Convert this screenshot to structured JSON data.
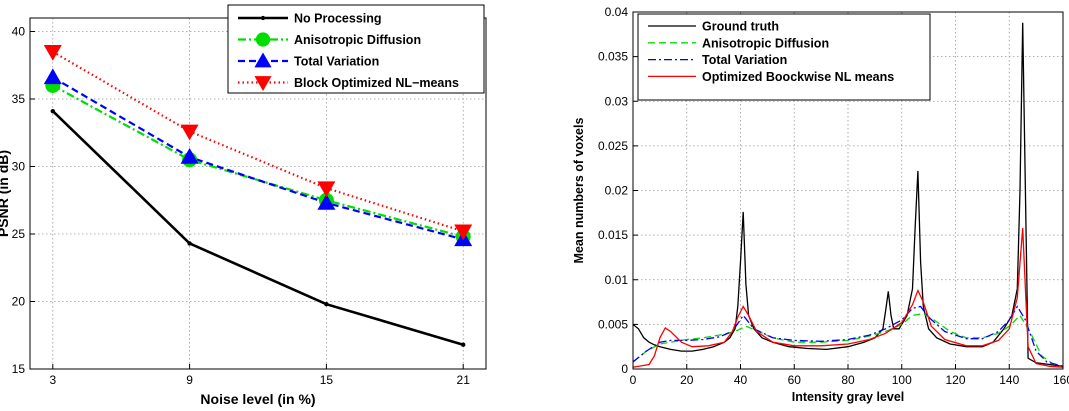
{
  "chart_data": [
    {
      "type": "line",
      "xlabel": "Noise level (in %)",
      "ylabel": "PSNR (in dB)",
      "xlim": [
        2,
        22
      ],
      "ylim": [
        15,
        41
      ],
      "xticks": [
        3,
        9,
        15,
        21
      ],
      "yticks": [
        15,
        20,
        25,
        30,
        35,
        40
      ],
      "grid": true,
      "legend_position": "top-right",
      "x": [
        3,
        9,
        15,
        21
      ],
      "series": [
        {
          "name": "No Processing",
          "values": [
            34.1,
            24.3,
            19.8,
            16.8
          ],
          "color": "#000000",
          "style": "solid",
          "marker": "dot"
        },
        {
          "name": "Anisotropic Diffusion",
          "values": [
            36.0,
            30.5,
            27.5,
            24.8
          ],
          "color": "#00dd00",
          "style": "dashdot",
          "marker": "circle"
        },
        {
          "name": "Total Variation",
          "values": [
            36.6,
            30.7,
            27.3,
            24.6
          ],
          "color": "#0000ff",
          "style": "dashed",
          "marker": "triangle-up"
        },
        {
          "name": "Block Optimized NL−means",
          "values": [
            38.5,
            32.6,
            28.4,
            25.2
          ],
          "color": "#ff0000",
          "style": "dotted",
          "marker": "triangle-down"
        }
      ]
    },
    {
      "type": "line",
      "xlabel": "Intensity gray level",
      "ylabel": "Mean numbers of voxels",
      "xlim": [
        0,
        160
      ],
      "ylim": [
        0,
        0.04
      ],
      "xticks": [
        0,
        20,
        40,
        60,
        80,
        100,
        120,
        140,
        160
      ],
      "yticks": [
        0,
        0.005,
        0.01,
        0.015,
        0.02,
        0.025,
        0.03,
        0.035,
        0.04
      ],
      "ytick_labels": [
        "0",
        "0.005",
        "0.01",
        "0.015",
        "0.02",
        "0.025",
        "0.03",
        "0.035",
        "0.04"
      ],
      "grid": true,
      "legend_position": "top-left",
      "series": [
        {
          "name": "Ground truth",
          "color": "#000000",
          "style": "solid",
          "points": [
            [
              0,
              0.005
            ],
            [
              2,
              0.0045
            ],
            [
              4,
              0.0035
            ],
            [
              6,
              0.003
            ],
            [
              8,
              0.0027
            ],
            [
              10,
              0.0025
            ],
            [
              14,
              0.0022
            ],
            [
              18,
              0.002
            ],
            [
              22,
              0.002
            ],
            [
              26,
              0.0022
            ],
            [
              30,
              0.0025
            ],
            [
              34,
              0.003
            ],
            [
              36,
              0.0035
            ],
            [
              38,
              0.0045
            ],
            [
              39,
              0.007
            ],
            [
              40,
              0.012
            ],
            [
              41,
              0.0176
            ],
            [
              42,
              0.0095
            ],
            [
              43,
              0.006
            ],
            [
              45,
              0.0045
            ],
            [
              48,
              0.0035
            ],
            [
              52,
              0.003
            ],
            [
              58,
              0.0025
            ],
            [
              65,
              0.0023
            ],
            [
              72,
              0.0022
            ],
            [
              80,
              0.0025
            ],
            [
              86,
              0.003
            ],
            [
              90,
              0.0035
            ],
            [
              93,
              0.0045
            ],
            [
              94,
              0.0065
            ],
            [
              95,
              0.0087
            ],
            [
              96,
              0.006
            ],
            [
              97,
              0.0045
            ],
            [
              99,
              0.0045
            ],
            [
              102,
              0.006
            ],
            [
              104,
              0.009
            ],
            [
              105,
              0.016
            ],
            [
              106,
              0.0222
            ],
            [
              107,
              0.012
            ],
            [
              108,
              0.007
            ],
            [
              110,
              0.0045
            ],
            [
              113,
              0.0035
            ],
            [
              118,
              0.0028
            ],
            [
              124,
              0.0025
            ],
            [
              130,
              0.0025
            ],
            [
              134,
              0.003
            ],
            [
              138,
              0.0045
            ],
            [
              141,
              0.006
            ],
            [
              143,
              0.009
            ],
            [
              144,
              0.02
            ],
            [
              145,
              0.0388
            ],
            [
              146,
              0.02
            ],
            [
              147,
              0.0012
            ],
            [
              150,
              0.0007
            ],
            [
              155,
              0.0005
            ],
            [
              160,
              0.0003
            ]
          ]
        },
        {
          "name": "Anisotropic Diffusion",
          "color": "#00dd00",
          "style": "dashed",
          "points": [
            [
              0,
              0.0008
            ],
            [
              5,
              0.002
            ],
            [
              10,
              0.0028
            ],
            [
              14,
              0.003
            ],
            [
              20,
              0.0033
            ],
            [
              26,
              0.0035
            ],
            [
              32,
              0.0038
            ],
            [
              38,
              0.0042
            ],
            [
              42,
              0.0048
            ],
            [
              46,
              0.0043
            ],
            [
              52,
              0.0035
            ],
            [
              60,
              0.003
            ],
            [
              70,
              0.003
            ],
            [
              80,
              0.0032
            ],
            [
              88,
              0.0037
            ],
            [
              94,
              0.0042
            ],
            [
              100,
              0.005
            ],
            [
              104,
              0.006
            ],
            [
              108,
              0.0062
            ],
            [
              112,
              0.0055
            ],
            [
              118,
              0.0042
            ],
            [
              124,
              0.0035
            ],
            [
              130,
              0.0035
            ],
            [
              136,
              0.004
            ],
            [
              140,
              0.0048
            ],
            [
              144,
              0.006
            ],
            [
              148,
              0.004
            ],
            [
              152,
              0.0015
            ],
            [
              156,
              0.0006
            ],
            [
              160,
              0.0002
            ]
          ]
        },
        {
          "name": "Total Variation",
          "color": "#0000ff",
          "style": "dashdot",
          "points": [
            [
              0,
              0.0008
            ],
            [
              5,
              0.002
            ],
            [
              10,
              0.003
            ],
            [
              14,
              0.0032
            ],
            [
              20,
              0.0032
            ],
            [
              26,
              0.0033
            ],
            [
              32,
              0.0036
            ],
            [
              37,
              0.0042
            ],
            [
              41,
              0.006
            ],
            [
              45,
              0.0045
            ],
            [
              52,
              0.0035
            ],
            [
              60,
              0.0032
            ],
            [
              70,
              0.0031
            ],
            [
              80,
              0.0033
            ],
            [
              88,
              0.0038
            ],
            [
              94,
              0.0045
            ],
            [
              100,
              0.0055
            ],
            [
              104,
              0.0068
            ],
            [
              107,
              0.007
            ],
            [
              110,
              0.0058
            ],
            [
              116,
              0.0042
            ],
            [
              124,
              0.0034
            ],
            [
              130,
              0.0034
            ],
            [
              136,
              0.0042
            ],
            [
              140,
              0.0055
            ],
            [
              143,
              0.007
            ],
            [
              146,
              0.0055
            ],
            [
              150,
              0.002
            ],
            [
              154,
              0.0008
            ],
            [
              160,
              0.0003
            ]
          ]
        },
        {
          "name": "Optimized Boockwise NL means",
          "color": "#ff0000",
          "style": "solid",
          "points": [
            [
              0,
              0.0002
            ],
            [
              6,
              0.0005
            ],
            [
              8,
              0.0015
            ],
            [
              10,
              0.0035
            ],
            [
              12,
              0.0046
            ],
            [
              14,
              0.0042
            ],
            [
              18,
              0.003
            ],
            [
              22,
              0.0025
            ],
            [
              28,
              0.0026
            ],
            [
              34,
              0.003
            ],
            [
              37,
              0.0042
            ],
            [
              39,
              0.0058
            ],
            [
              41,
              0.007
            ],
            [
              43,
              0.006
            ],
            [
              46,
              0.0042
            ],
            [
              52,
              0.003
            ],
            [
              60,
              0.0026
            ],
            [
              70,
              0.0026
            ],
            [
              80,
              0.0028
            ],
            [
              88,
              0.0033
            ],
            [
              94,
              0.004
            ],
            [
              100,
              0.0052
            ],
            [
              104,
              0.0072
            ],
            [
              106,
              0.0088
            ],
            [
              108,
              0.0075
            ],
            [
              111,
              0.0048
            ],
            [
              116,
              0.0033
            ],
            [
              124,
              0.0026
            ],
            [
              130,
              0.0026
            ],
            [
              136,
              0.0032
            ],
            [
              140,
              0.0045
            ],
            [
              143,
              0.008
            ],
            [
              145,
              0.0158
            ],
            [
              146,
              0.009
            ],
            [
              147,
              0.0025
            ],
            [
              150,
              0.0006
            ],
            [
              155,
              0.0003
            ],
            [
              160,
              0.0002
            ]
          ]
        }
      ]
    }
  ]
}
